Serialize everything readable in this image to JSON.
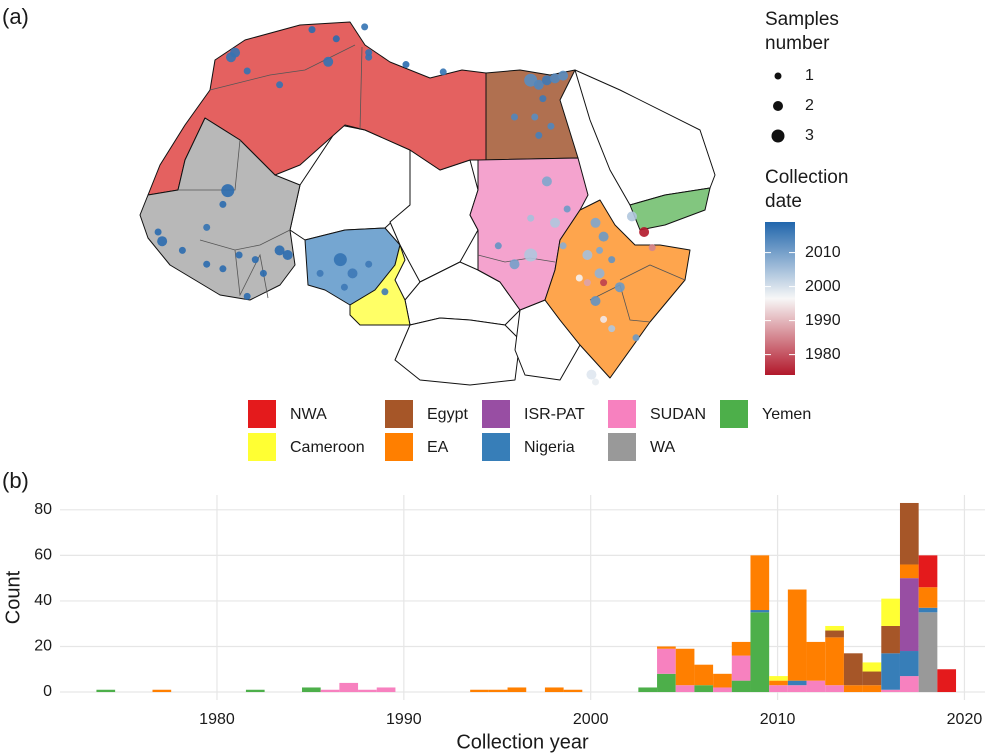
{
  "chart_data": [
    {
      "type": "map",
      "panel": "(a)",
      "size_legend": {
        "title": [
          "Samples",
          "number"
        ],
        "values": [
          1,
          2,
          3
        ]
      },
      "color_legend": {
        "title": [
          "Collection",
          "date"
        ],
        "lim": [
          1974,
          2019
        ],
        "ticks": [
          1980,
          1990,
          2000,
          2010
        ],
        "colors": [
          "#b2182b",
          "#f7f7f7",
          "#2166ac"
        ]
      },
      "points": {
        "lon": [
          -7,
          -6.5,
          -5,
          3,
          6,
          5,
          -1,
          10,
          9.5,
          10,
          14.6,
          19.2,
          30,
          31,
          32,
          33,
          31.5,
          30.5,
          32.5,
          31,
          28,
          34,
          -7.4,
          -8,
          -10,
          -16,
          -15.5,
          -13,
          -10,
          -8,
          -6,
          -4,
          -1,
          0,
          -3,
          -5,
          6.5,
          4,
          8,
          10,
          12,
          7,
          32,
          30,
          33,
          30,
          26,
          34,
          28,
          34.5,
          38,
          39,
          38.5,
          37,
          40,
          38.5,
          36,
          37,
          39,
          41,
          38,
          39,
          43,
          40,
          37.5,
          38,
          42.5,
          44,
          45
        ],
        "lat": [
          33.5,
          34,
          32,
          36.5,
          35.5,
          33,
          30.5,
          33.5,
          36.8,
          34,
          32.7,
          31.9,
          31,
          30.5,
          31,
          31.2,
          29,
          27,
          26,
          25,
          27,
          31.5,
          19,
          17.5,
          15,
          14.5,
          13.5,
          12.5,
          11,
          10.5,
          12,
          11.5,
          12.5,
          12,
          10,
          7.5,
          11.5,
          10,
          10,
          11,
          8,
          8.5,
          20,
          16,
          15.5,
          12,
          13,
          13,
          11,
          17,
          15.5,
          14,
          12.5,
          12,
          11.5,
          10,
          9.5,
          9,
          9,
          8.5,
          7,
          5,
          3,
          4,
          -1,
          -1.8,
          16.2,
          14.5,
          12.8
        ],
        "year": [
          2017,
          2017,
          2017,
          2018,
          2018,
          2017,
          2017,
          2017,
          2017,
          2017,
          2018,
          2017,
          2013,
          2014,
          2016,
          2014,
          2016,
          2013,
          2014,
          2015,
          2014,
          2013,
          2018,
          2018,
          2017,
          2018,
          2018,
          2018,
          2018,
          2018,
          2018,
          2018,
          2018,
          2018,
          2018,
          2018,
          2017,
          2016,
          2016,
          2016,
          2016,
          2016,
          2009,
          2005,
          2004,
          2004,
          2012,
          2008,
          2010,
          2011,
          2009,
          2011,
          2009,
          2005,
          2012,
          2007,
          1996,
          1988,
          1978,
          2011,
          2012,
          1995,
          2011,
          2004,
          1999,
          1998,
          2004,
          1974,
          1985
        ],
        "n": [
          2,
          2,
          1,
          1,
          1,
          2,
          1,
          1,
          1,
          1,
          1,
          1,
          3,
          2,
          2,
          2,
          1,
          1,
          1,
          1,
          1,
          2,
          3,
          1,
          1,
          1,
          2,
          1,
          1,
          1,
          1,
          1,
          2,
          2,
          1,
          1,
          3,
          1,
          2,
          1,
          1,
          1,
          2,
          1,
          2,
          3,
          1,
          1,
          2,
          1,
          2,
          2,
          1,
          2,
          1,
          2,
          1,
          1,
          1,
          2,
          2,
          1,
          1,
          1,
          2,
          1,
          2,
          2,
          1
        ]
      }
    },
    {
      "type": "histogram",
      "panel": "(b)",
      "xlabel": "Collection year",
      "ylabel": "Count",
      "xlim": [
        1971.6,
        2021.1
      ],
      "ylim": [
        -3.5,
        86.5
      ],
      "xticks": [
        1980,
        1990,
        2000,
        2010,
        2020
      ],
      "yticks": [
        0,
        20,
        40,
        60,
        80
      ],
      "grid": true,
      "bins": [
        1973.55,
        1974.55,
        1975.55,
        1976.55,
        1977.55,
        1978.55,
        1979.55,
        1980.55,
        1981.55,
        1982.55,
        1983.55,
        1984.55,
        1985.55,
        1986.55,
        1987.55,
        1988.55,
        1989.55,
        1990.55,
        1991.55,
        1992.55,
        1993.55,
        1994.55,
        1995.55,
        1996.55,
        1997.55,
        1998.55,
        1999.55,
        2000.55,
        2001.55,
        2002.55,
        2003.55,
        2004.55,
        2005.55,
        2006.55,
        2007.55,
        2008.55,
        2009.55,
        2010.55,
        2011.55,
        2012.55,
        2013.55,
        2014.55,
        2015.55,
        2016.55,
        2017.55,
        2018.55,
        2019.55
      ],
      "series": [
        {
          "name": "NWA",
          "color": "#e41a1c",
          "values": [
            0,
            0,
            0,
            0,
            0,
            0,
            0,
            0,
            0,
            0,
            0,
            0,
            0,
            0,
            0,
            0,
            0,
            0,
            0,
            0,
            0,
            0,
            0,
            0,
            0,
            0,
            0,
            0,
            0,
            0,
            0,
            0,
            0,
            0,
            0,
            0,
            0,
            0,
            0,
            0,
            0,
            0,
            0,
            0,
            14,
            10
          ]
        },
        {
          "name": "Cameroon",
          "color": "#ffff33",
          "values": [
            0,
            0,
            0,
            0,
            0,
            0,
            0,
            0,
            0,
            0,
            0,
            0,
            0,
            0,
            0,
            0,
            0,
            0,
            0,
            0,
            0,
            0,
            0,
            0,
            0,
            0,
            0,
            0,
            0,
            0,
            0,
            0,
            0,
            0,
            0,
            0,
            2,
            0,
            0,
            2,
            0,
            4,
            12,
            0,
            0,
            0
          ]
        },
        {
          "name": "Egypt",
          "color": "#a65628",
          "values": [
            0,
            0,
            0,
            0,
            0,
            0,
            0,
            0,
            0,
            0,
            0,
            0,
            0,
            0,
            0,
            0,
            0,
            0,
            0,
            0,
            0,
            0,
            0,
            0,
            0,
            0,
            0,
            0,
            0,
            0,
            0,
            0,
            0,
            0,
            0,
            0,
            0,
            0,
            0,
            3,
            14,
            6,
            12,
            27,
            0,
            0
          ]
        },
        {
          "name": "EA",
          "color": "#ff7f00",
          "values": [
            0,
            0,
            0,
            1,
            0,
            0,
            0,
            0,
            0,
            0,
            0,
            0,
            0,
            0,
            0,
            0,
            0,
            0,
            0,
            0,
            1,
            1,
            2,
            0,
            2,
            1,
            0,
            0,
            0,
            0,
            1,
            16,
            9,
            6,
            6,
            24,
            2,
            40,
            17,
            21,
            3,
            3,
            0,
            6,
            9,
            0
          ]
        },
        {
          "name": "ISR-PAT",
          "color": "#984ea3",
          "values": [
            0,
            0,
            0,
            0,
            0,
            0,
            0,
            0,
            0,
            0,
            0,
            0,
            0,
            0,
            0,
            0,
            0,
            0,
            0,
            0,
            0,
            0,
            0,
            0,
            0,
            0,
            0,
            0,
            0,
            0,
            0,
            0,
            0,
            0,
            0,
            0,
            0,
            0,
            0,
            0,
            0,
            0,
            0,
            32,
            0,
            0
          ]
        },
        {
          "name": "Nigeria",
          "color": "#377eb8",
          "values": [
            0,
            0,
            0,
            0,
            0,
            0,
            0,
            0,
            0,
            0,
            0,
            0,
            0,
            0,
            0,
            0,
            0,
            0,
            0,
            0,
            0,
            0,
            0,
            0,
            0,
            0,
            0,
            0,
            0,
            0,
            0,
            0,
            0,
            0,
            0,
            1,
            0,
            2,
            0,
            0,
            0,
            0,
            16,
            11,
            2,
            0
          ]
        },
        {
          "name": "SUDAN",
          "color": "#f781bf",
          "values": [
            0,
            0,
            0,
            0,
            0,
            0,
            0,
            0,
            0,
            0,
            0,
            0,
            1,
            4,
            1,
            2,
            0,
            0,
            0,
            0,
            0,
            0,
            0,
            0,
            0,
            0,
            0,
            0,
            0,
            0,
            11,
            3,
            0,
            2,
            11,
            0,
            3,
            3,
            5,
            3,
            0,
            0,
            1,
            7,
            0,
            0
          ]
        },
        {
          "name": "WA",
          "color": "#999999",
          "values": [
            0,
            0,
            0,
            0,
            0,
            0,
            0,
            0,
            0,
            0,
            0,
            0,
            0,
            0,
            0,
            0,
            0,
            0,
            0,
            0,
            0,
            0,
            0,
            0,
            0,
            0,
            0,
            0,
            0,
            0,
            0,
            0,
            0,
            0,
            0,
            0,
            0,
            0,
            0,
            0,
            0,
            0,
            0,
            0,
            35,
            0
          ]
        },
        {
          "name": "Yemen",
          "color": "#4daf4a",
          "values": [
            1,
            0,
            0,
            0,
            0,
            0,
            0,
            0,
            1,
            0,
            0,
            2,
            0,
            0,
            0,
            0,
            0,
            0,
            0,
            0,
            0,
            0,
            0,
            0,
            0,
            0,
            0,
            0,
            0,
            2,
            8,
            0,
            3,
            0,
            5,
            35,
            0,
            0,
            0,
            0,
            0,
            0,
            0,
            0,
            0,
            0
          ]
        }
      ]
    }
  ]
}
